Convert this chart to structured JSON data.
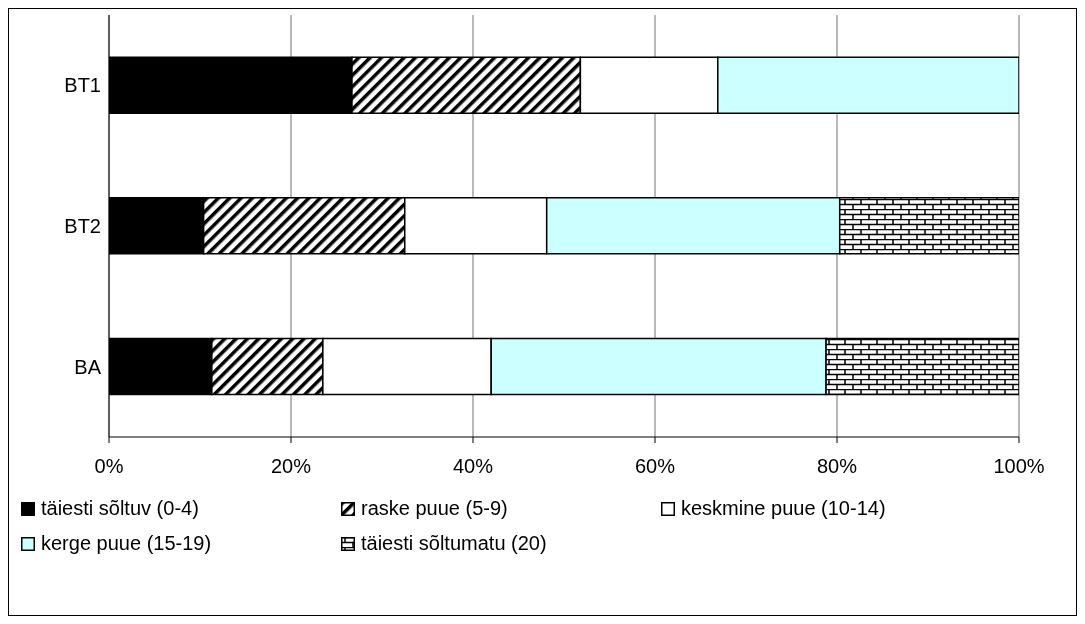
{
  "chart_data": {
    "type": "bar",
    "orientation": "horizontal",
    "stacked": true,
    "categories": [
      "BT1",
      "BT2",
      "BA"
    ],
    "series": [
      {
        "name": "täiesti sõltuv (0-4)",
        "color": "#000000",
        "values": [
          26.7,
          10.4,
          11.3
        ]
      },
      {
        "name": "raske puue (5-9)",
        "color": "#000000",
        "values": [
          25.1,
          22.1,
          12.2
        ]
      },
      {
        "name": "keskmine puue (10-14)",
        "color": "#ffffff",
        "values": [
          15.1,
          15.6,
          18.5
        ]
      },
      {
        "name": "kerge puue (15-19)",
        "color": "#ccffff",
        "values": [
          33.1,
          32.2,
          36.8
        ]
      },
      {
        "name": "täiesti sõltumatu (20)",
        "color": "#000000",
        "values": [
          null,
          19.7,
          21.2
        ]
      }
    ],
    "xlim": [
      0,
      100
    ],
    "xticks": [
      {
        "value": 0,
        "label": "0%"
      },
      {
        "value": 20,
        "label": "20%"
      },
      {
        "value": 40,
        "label": "40%"
      },
      {
        "value": 60,
        "label": "60%"
      },
      {
        "value": 80,
        "label": "80%"
      },
      {
        "value": 100,
        "label": "100%"
      }
    ],
    "grid": "x",
    "legend": "bottom"
  }
}
